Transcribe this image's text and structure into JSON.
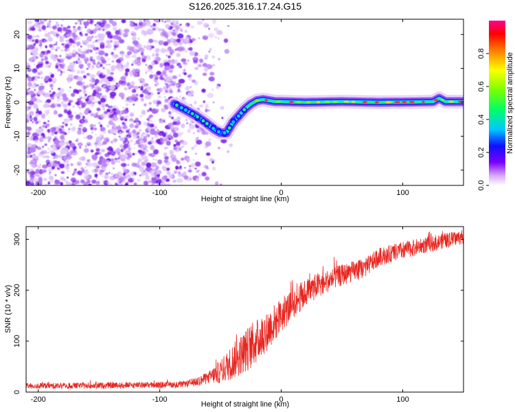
{
  "title": "S126.2025.316.17.24.G15",
  "colors": {
    "snr_line": "#e8251f",
    "dots": "#7a1de8",
    "track_core": "#1a17ff",
    "track_mid": "#00d4ff",
    "track_hot": "#27f06b",
    "track_peak": "#ff2a2a"
  },
  "chart_data": [
    {
      "type": "heatmap",
      "name": "spectrogram",
      "xlabel": "Height of straight line (km)",
      "ylabel": "Frequency (Hz)",
      "xlim": [
        -210,
        150
      ],
      "ylim": [
        -24.5,
        24.5
      ],
      "xticks": [
        -200,
        -100,
        0,
        100
      ],
      "xtick_labels": [
        "-200",
        "-100",
        "0",
        "100"
      ],
      "yticks": [
        -20,
        -10,
        0,
        10,
        20
      ],
      "ytick_labels": [
        "-20",
        "-10",
        "0",
        "10",
        "20"
      ],
      "track": {
        "description": "signal ridge frequency (Hz) vs height (km)",
        "x": [
          -88,
          -80,
          -70,
          -62,
          -55,
          -50,
          -45,
          -40,
          -35,
          -30,
          -25,
          -20,
          -15,
          -10,
          -5,
          0,
          20,
          50,
          80,
          110,
          125,
          130,
          135,
          150
        ],
        "y": [
          -0.5,
          -2,
          -4,
          -6,
          -8,
          -9,
          -9,
          -6,
          -4,
          -2,
          -0.5,
          0.5,
          0.8,
          0.5,
          0.2,
          0.2,
          0,
          0.2,
          0,
          0.1,
          0.2,
          1.2,
          0.2,
          0.2
        ]
      },
      "colorbar": {
        "label": "Normalized spectral amplitude",
        "range": [
          0.0,
          1.0
        ],
        "ticks": [
          0.0,
          0.2,
          0.4,
          0.6,
          0.8
        ],
        "tick_labels": [
          "0.0",
          "0.2",
          "0.4",
          "0.6",
          "0.8"
        ]
      }
    },
    {
      "type": "line",
      "name": "snr",
      "xlabel": "Height of straight line (km)",
      "ylabel": "SNR (10 * v/v)",
      "xlim": [
        -210,
        150
      ],
      "ylim": [
        0,
        325
      ],
      "xticks": [
        -200,
        -100,
        0,
        100
      ],
      "xtick_labels": [
        "-200",
        "-100",
        "0",
        "100"
      ],
      "yticks": [
        0,
        100,
        200,
        300
      ],
      "ytick_labels": [
        "0",
        "100",
        "200",
        "300"
      ],
      "trend": {
        "x": [
          -210,
          -150,
          -100,
          -80,
          -70,
          -60,
          -50,
          -40,
          -30,
          -20,
          -10,
          0,
          10,
          20,
          30,
          50,
          70,
          80,
          100,
          120,
          150
        ],
        "y": [
          12,
          13,
          14,
          15,
          20,
          28,
          40,
          60,
          80,
          100,
          125,
          150,
          175,
          195,
          210,
          230,
          245,
          265,
          278,
          290,
          305
        ]
      },
      "noise_amp": {
        "x": [
          -210,
          -80,
          -60,
          -40,
          -25,
          -10,
          10,
          40,
          80,
          150
        ],
        "y": [
          6,
          6,
          12,
          35,
          45,
          40,
          30,
          22,
          18,
          14
        ]
      }
    }
  ]
}
